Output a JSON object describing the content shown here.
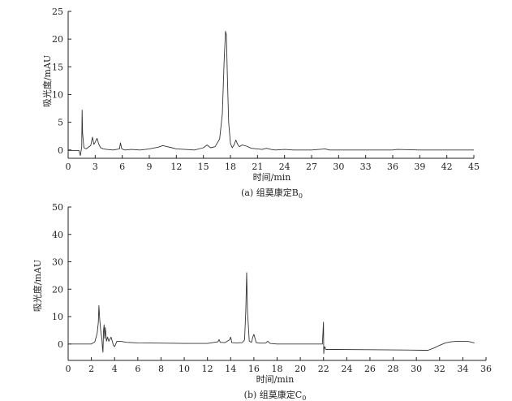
{
  "chart_data": [
    {
      "type": "line",
      "caption": "(a) 组莫康定B",
      "caption_sub": "0",
      "xlabel": "时间/min",
      "ylabel": "吸光度/mAU",
      "xlim": [
        0,
        45
      ],
      "ylim": [
        -1.5,
        25
      ],
      "xticks": [
        0,
        3,
        6,
        9,
        12,
        15,
        18,
        21,
        24,
        27,
        30,
        33,
        36,
        39,
        42,
        45
      ],
      "yticks": [
        0,
        5,
        10,
        15,
        20,
        25
      ],
      "grid": false,
      "line_color": "#333333",
      "series": [
        {
          "x": [
            0,
            1.2,
            1.35,
            1.5,
            1.55,
            1.6,
            1.75,
            2.0,
            2.5,
            2.7,
            2.85,
            3.0,
            3.2,
            3.4,
            3.6,
            3.9,
            4.3,
            5.0,
            5.7,
            5.8,
            5.95,
            6.3,
            7.0,
            8.0,
            9.0,
            10.0,
            10.5,
            11.0,
            11.5,
            12.0,
            13.0,
            14.0,
            15.0,
            15.4,
            15.8,
            16.3,
            16.8,
            17.1,
            17.3,
            17.45,
            17.55,
            17.65,
            17.8,
            18.0,
            18.2,
            18.4,
            18.6,
            18.8,
            19.0,
            19.3,
            19.8,
            20.3,
            21.0,
            21.5,
            22.0,
            22.5,
            23.0,
            24.0,
            25.0,
            27.0,
            28.5,
            29.0,
            30.0,
            33.0,
            36.0,
            36.5,
            39.0,
            42.0,
            45.0
          ],
          "y": [
            -0.1,
            -0.1,
            -1.0,
            0.5,
            7.2,
            3.0,
            0.4,
            0.2,
            0.8,
            2.3,
            1.0,
            1.4,
            2.1,
            1.0,
            0.4,
            0.2,
            0.1,
            0.0,
            0.2,
            1.3,
            0.2,
            0.0,
            0.1,
            0.0,
            0.2,
            0.5,
            0.8,
            0.6,
            0.4,
            0.2,
            0.1,
            0.0,
            0.4,
            0.9,
            0.4,
            0.6,
            2.0,
            6.5,
            16.0,
            21.4,
            20.8,
            14.0,
            5.0,
            1.2,
            0.4,
            0.9,
            1.8,
            1.0,
            0.6,
            0.9,
            0.7,
            0.3,
            0.2,
            0.1,
            0.3,
            0.1,
            0.0,
            0.1,
            0.0,
            0.0,
            0.2,
            0.0,
            0.0,
            0.0,
            0.0,
            0.1,
            0.0,
            0.0,
            0.0
          ]
        }
      ]
    },
    {
      "type": "line",
      "caption": "(b) 组莫康定C",
      "caption_sub": "0",
      "xlabel": "时间/min",
      "ylabel": "吸光度/mAU",
      "xlim": [
        0,
        36
      ],
      "ylim": [
        -6,
        50
      ],
      "xticks": [
        0,
        2,
        4,
        6,
        8,
        10,
        12,
        14,
        16,
        18,
        20,
        22,
        24,
        26,
        28,
        30,
        32,
        34,
        36
      ],
      "yticks": [
        0,
        10,
        20,
        30,
        40,
        50
      ],
      "grid": false,
      "line_color": "#333333",
      "series": [
        {
          "x": [
            0.0,
            2.0,
            2.3,
            2.5,
            2.6,
            2.65,
            2.72,
            2.8,
            2.9,
            2.95,
            3.0,
            3.05,
            3.1,
            3.15,
            3.2,
            3.3,
            3.4,
            3.5,
            3.7,
            3.9,
            4.0,
            4.2,
            4.5,
            5.0,
            6.0,
            8.0,
            10.0,
            12.0,
            12.9,
            13.0,
            13.1,
            13.5,
            13.9,
            14.0,
            14.1,
            14.5,
            15.0,
            15.2,
            15.3,
            15.38,
            15.45,
            15.6,
            15.8,
            15.9,
            16.0,
            16.2,
            16.5,
            17.0,
            17.2,
            17.4,
            18.0,
            20.0,
            21.0,
            21.9,
            22.0,
            22.02,
            22.05,
            22.1,
            22.2,
            23.0,
            26.0,
            29.0,
            30.5,
            31.0,
            31.5,
            32.0,
            32.5,
            33.0,
            33.5,
            34.0,
            34.5,
            35.0
          ],
          "y": [
            0.0,
            0.0,
            0.8,
            4.0,
            8.0,
            14.0,
            9.0,
            5.0,
            2.0,
            -1.0,
            -3.0,
            5.0,
            7.0,
            2.0,
            6.0,
            1.0,
            2.5,
            1.0,
            2.5,
            -0.5,
            -1.0,
            1.0,
            1.0,
            0.6,
            0.4,
            0.3,
            0.2,
            0.2,
            0.8,
            1.6,
            0.6,
            0.5,
            1.5,
            2.5,
            0.5,
            0.4,
            0.5,
            1.5,
            12.0,
            26.0,
            12.0,
            1.0,
            0.6,
            2.5,
            3.5,
            0.5,
            0.3,
            0.3,
            1.0,
            0.2,
            0.0,
            0.0,
            0.0,
            0.0,
            8.0,
            -3.5,
            -2.0,
            -1.0,
            -2.0,
            -2.0,
            -2.1,
            -2.2,
            -2.3,
            -2.3,
            -1.5,
            -0.5,
            0.4,
            0.8,
            1.0,
            1.0,
            0.9,
            0.4
          ]
        }
      ]
    }
  ]
}
